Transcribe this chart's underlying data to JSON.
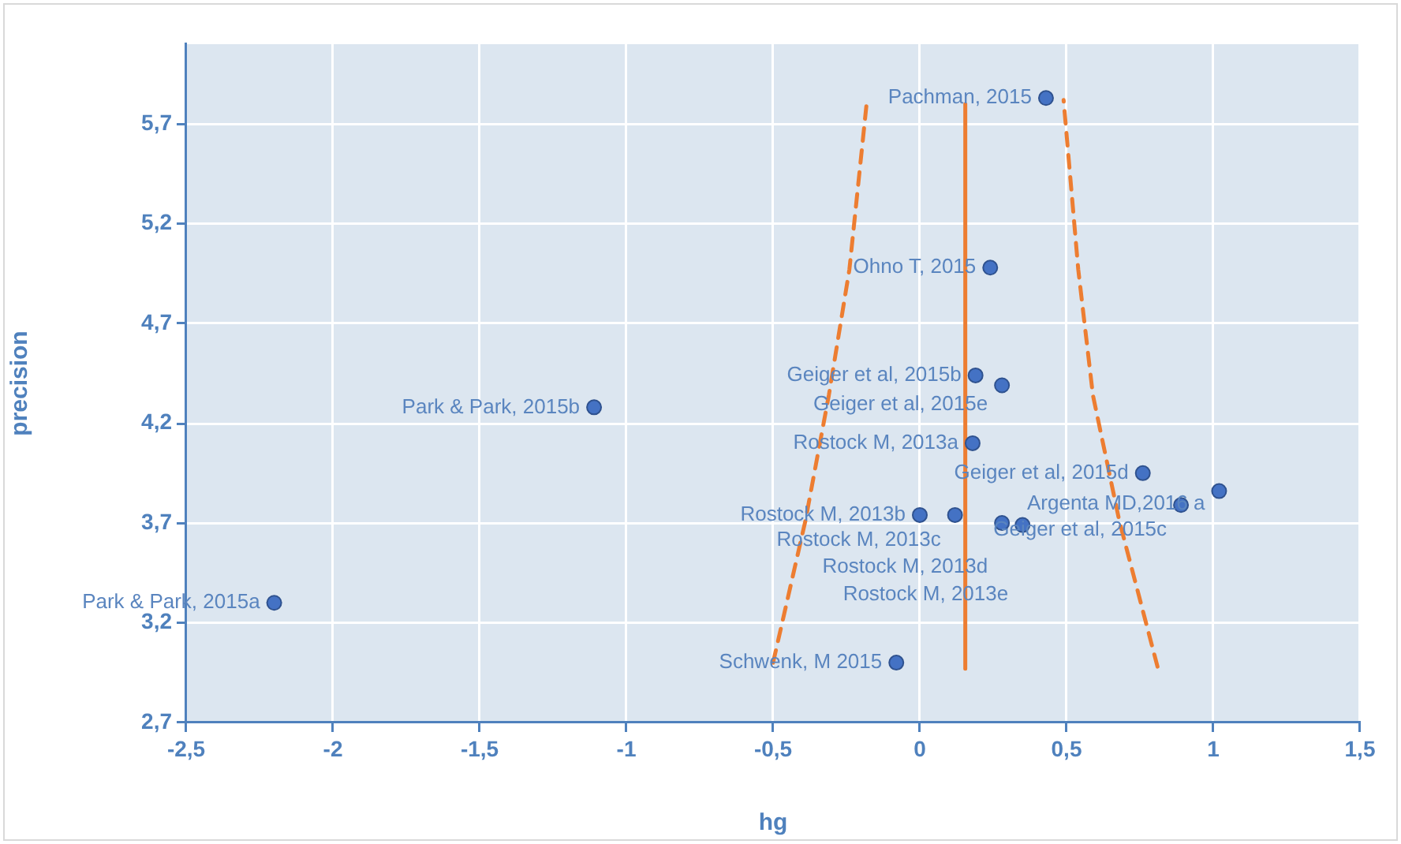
{
  "chart_data": {
    "type": "scatter",
    "xlabel": "hg",
    "ylabel": "precision",
    "xlim": [
      -2.5,
      1.5
    ],
    "xticks": [
      {
        "value": -2.5,
        "label": "-2,5"
      },
      {
        "value": -2,
        "label": "-2"
      },
      {
        "value": -1.5,
        "label": "-1,5"
      },
      {
        "value": -1,
        "label": "-1"
      },
      {
        "value": -0.5,
        "label": "-0,5"
      },
      {
        "value": 0,
        "label": "0"
      },
      {
        "value": 0.5,
        "label": "0,5"
      },
      {
        "value": 1,
        "label": "1"
      },
      {
        "value": 1.5,
        "label": "1,5"
      }
    ],
    "ylim": [
      2.7,
      6.1
    ],
    "yticks": [
      {
        "value": 2.7,
        "label": "2,7"
      },
      {
        "value": 3.2,
        "label": "3,2"
      },
      {
        "value": 3.7,
        "label": "3,7"
      },
      {
        "value": 4.2,
        "label": "4,2"
      },
      {
        "value": 4.7,
        "label": "4,7"
      },
      {
        "value": 5.2,
        "label": "5,2"
      },
      {
        "value": 5.7,
        "label": "5,7"
      }
    ],
    "grid": true,
    "legend": false,
    "marker": "circle",
    "series": [
      {
        "color": "#4472c4",
        "x": [
          0.43,
          0.24,
          0.19,
          0.28,
          -1.11,
          0.18,
          0.76,
          1.02,
          0.89,
          0.0,
          0.12,
          0.28,
          0.35,
          -2.2,
          -0.08
        ],
        "values": [
          5.83,
          4.98,
          4.44,
          4.39,
          4.28,
          4.1,
          3.95,
          3.86,
          3.79,
          3.74,
          3.74,
          3.7,
          3.69,
          3.3,
          3.0
        ]
      },
      {
        "type": "line",
        "color": "#ed7d31",
        "line_style": "solid",
        "marker": "none",
        "x": [
          0.155,
          0.155
        ],
        "values": [
          2.97,
          5.8
        ]
      },
      {
        "type": "line",
        "color": "#ed7d31",
        "line_style": "dashed",
        "marker": "none",
        "x": [
          -0.5,
          -0.39,
          -0.31,
          -0.24,
          -0.18
        ],
        "values": [
          3.0,
          3.71,
          4.34,
          4.97,
          5.82
        ]
      },
      {
        "type": "line",
        "color": "#ed7d31",
        "line_style": "dashed",
        "marker": "none",
        "x": [
          0.81,
          0.68,
          0.59,
          0.54,
          0.49
        ],
        "values": [
          2.98,
          3.71,
          4.34,
          4.97,
          5.82
        ]
      }
    ],
    "annotations": [
      {
        "text": "Pachman, 2015",
        "x": 0.43,
        "y": 5.83
      },
      {
        "text": "Ohno T, 2015",
        "x": 0.24,
        "y": 4.98
      },
      {
        "text": "Geiger et al, 2015b",
        "x": 0.19,
        "y": 4.44
      },
      {
        "text": "Geiger et al, 2015e",
        "x": 0.28,
        "y": 4.39
      },
      {
        "text": "Park & Park, 2015b",
        "x": -1.11,
        "y": 4.28
      },
      {
        "text": "Rostock M, 2013a",
        "x": 0.18,
        "y": 4.1
      },
      {
        "text": "Geiger et al, 2015d",
        "x": 0.76,
        "y": 3.95
      },
      {
        "text": "Argenta MD,2016 a",
        "x": 1.02,
        "y": 3.86
      },
      {
        "text": "Geiger et al, 2015c",
        "x": 0.89,
        "y": 3.79
      },
      {
        "text": "Rostock M, 2013b",
        "x": 0.0,
        "y": 3.74
      },
      {
        "text": "Rostock M, 2013c",
        "x": 0.12,
        "y": 3.74
      },
      {
        "text": "Rostock M, 2013d",
        "x": 0.28,
        "y": 3.7
      },
      {
        "text": "Rostock M, 2013e",
        "x": 0.35,
        "y": 3.69
      },
      {
        "text": "Park & Park, 2015a",
        "x": -2.2,
        "y": 3.3
      },
      {
        "text": "Schwenk, M 2015",
        "x": -0.08,
        "y": 3.0
      }
    ]
  }
}
